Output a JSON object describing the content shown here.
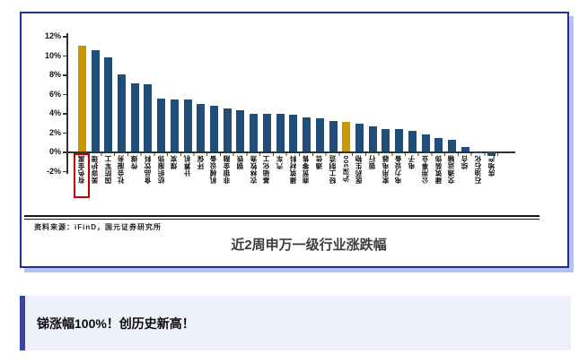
{
  "chart_card": {
    "source_note": "资料来源：iFinD，国元证券研究所",
    "caption": "近2周申万一级行业涨跌幅"
  },
  "chart_data": {
    "type": "bar",
    "title": "近2周申万一级行业涨跌幅",
    "xlabel": "",
    "ylabel": "",
    "ylim": [
      -2,
      12
    ],
    "grid": false,
    "legend": false,
    "ytick_labels": [
      "12%",
      "10%",
      "8%",
      "6%",
      "4%",
      "2%",
      "0%",
      "-2%"
    ],
    "categories": [
      "有色金属",
      "美容护理",
      "国防军工",
      "社会服务",
      "传媒",
      "食品饮料",
      "纺织服饰",
      "煤炭",
      "计算机",
      "环保",
      "机械设备",
      "非银金融",
      "钢铁",
      "农林牧渔",
      "基础化工",
      "汽车",
      "建筑材料",
      "商贸零售",
      "通信",
      "轻工制造",
      "沪深300",
      "医药生物",
      "银行",
      "家用电器",
      "电力设备",
      "电子",
      "公用事业",
      "建筑装饰",
      "交通运输",
      "综合",
      "石油石化",
      "房地产"
    ],
    "values": [
      11.0,
      10.5,
      9.8,
      8.0,
      7.1,
      7.0,
      5.5,
      5.4,
      5.35,
      4.9,
      4.75,
      4.45,
      4.25,
      3.95,
      3.9,
      3.9,
      3.85,
      3.5,
      3.45,
      3.2,
      3.05,
      2.9,
      2.6,
      2.35,
      2.3,
      2.15,
      1.75,
      1.4,
      1.25,
      0.45,
      -0.15,
      -0.5
    ],
    "bar_color": "#1F4E79",
    "highlight_color": "#C99700",
    "highlighted_categories": [
      "有色金属",
      "沪深300"
    ],
    "boxed_category": "有色金属",
    "box_color": "#c00000"
  },
  "callout": {
    "text": "锑涨幅100%！创历史新高！"
  },
  "colors": {
    "card_border": "#1e309b",
    "card_shadow": "#b9c2ec",
    "callout_bg": "#eef1f9",
    "callout_accent": "#3844a8"
  }
}
